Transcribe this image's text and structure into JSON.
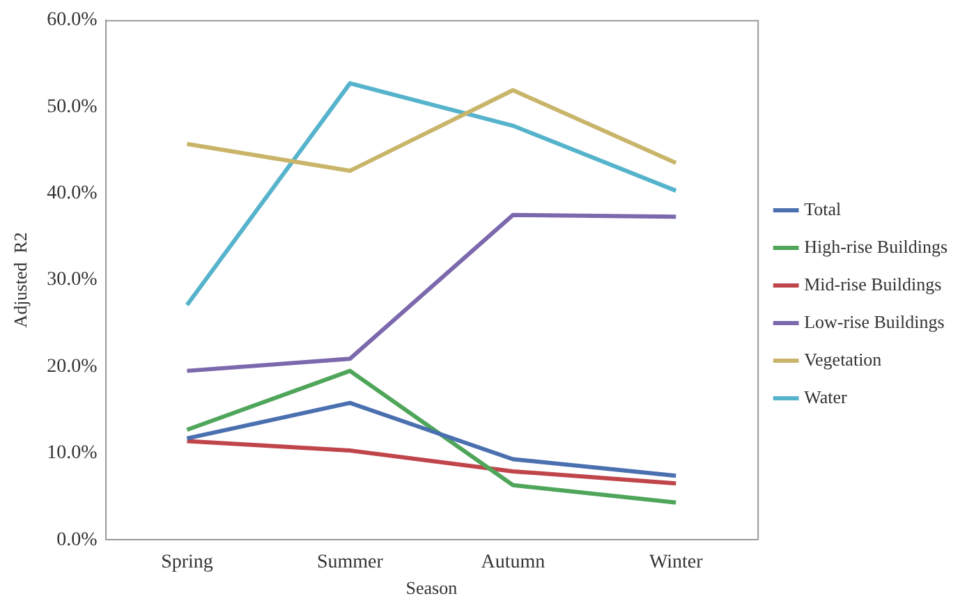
{
  "chart_data": {
    "type": "line",
    "xlabel": "Season",
    "ylabel": "Adjusted  R2",
    "categories": [
      "Spring",
      "Summer",
      "Autumn",
      "Winter"
    ],
    "series": [
      {
        "name": "Total",
        "color": "#4a70b0",
        "values": [
          11.7,
          15.8,
          9.3,
          7.4
        ]
      },
      {
        "name": "High-rise Buildings",
        "color": "#4fa65a",
        "values": [
          12.7,
          19.5,
          6.3,
          4.3
        ]
      },
      {
        "name": "Mid-rise Buildings",
        "color": "#c0454a",
        "values": [
          11.4,
          10.3,
          7.9,
          6.5
        ]
      },
      {
        "name": "Low-rise Buildings",
        "color": "#7b68ad",
        "values": [
          19.5,
          20.9,
          37.5,
          37.3
        ]
      },
      {
        "name": "Vegetation",
        "color": "#c9b56a",
        "values": [
          45.7,
          42.6,
          51.9,
          43.5
        ]
      },
      {
        "name": "Water",
        "color": "#56b3cc",
        "values": [
          27.1,
          52.7,
          47.8,
          40.3
        ]
      }
    ],
    "ylim": [
      0,
      60
    ],
    "yticks": [
      {
        "value": 0,
        "label": "0.0%"
      },
      {
        "value": 10,
        "label": "10.0%"
      },
      {
        "value": 20,
        "label": "20.0%"
      },
      {
        "value": 30,
        "label": "30.0%"
      },
      {
        "value": 40,
        "label": "40.0%"
      },
      {
        "value": 50,
        "label": "50.0%"
      },
      {
        "value": 60,
        "label": "60.0%"
      }
    ],
    "grid": false,
    "legend": "right",
    "marker": "none",
    "line_style": "solid"
  }
}
